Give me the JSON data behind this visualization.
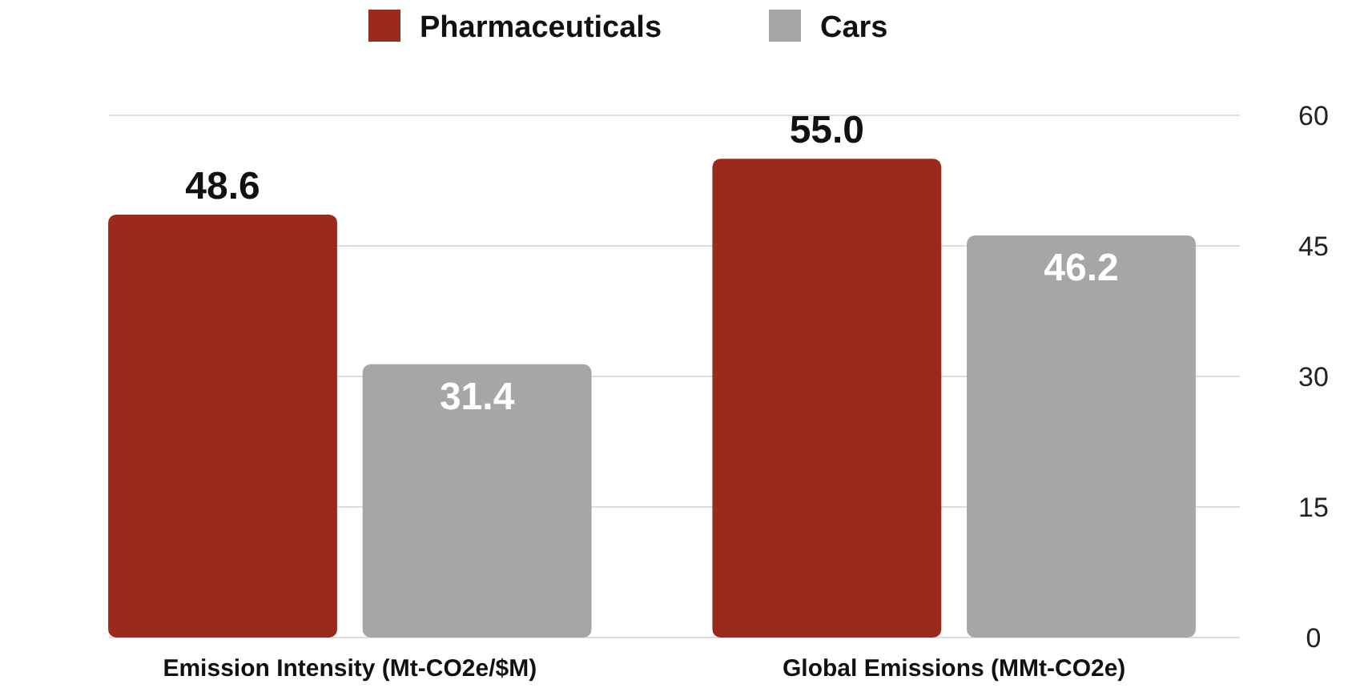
{
  "chart_data": {
    "type": "bar",
    "categories": [
      "Emission Intensity (Mt-CO2e/$M)",
      "Global Emissions (MMt-CO2e)"
    ],
    "series": [
      {
        "name": "Pharmaceuticals",
        "color": "#9b2a1e",
        "values": [
          48.6,
          55.0
        ],
        "value_labels": [
          "48.6",
          "55.0"
        ]
      },
      {
        "name": "Cars",
        "color": "#a6a6a6",
        "values": [
          31.4,
          46.2
        ],
        "value_labels": [
          "31.4",
          "46.2"
        ]
      }
    ],
    "ylim": [
      0,
      60
    ],
    "yticks": [
      0,
      15,
      30,
      45,
      60
    ],
    "grid": "y",
    "legend": "top"
  }
}
